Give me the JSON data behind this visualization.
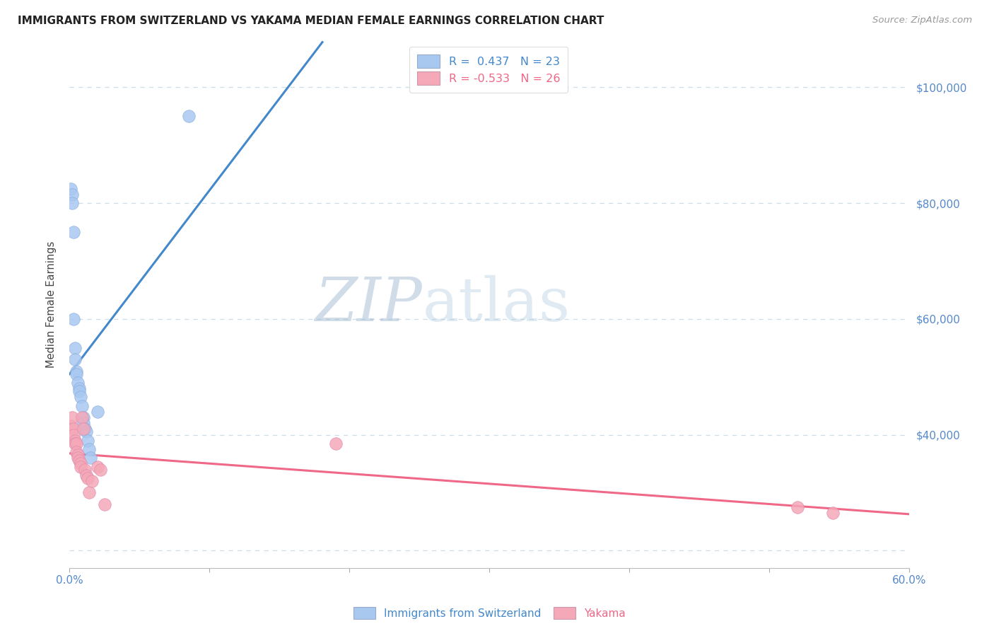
{
  "title": "IMMIGRANTS FROM SWITZERLAND VS YAKAMA MEDIAN FEMALE EARNINGS CORRELATION CHART",
  "source": "Source: ZipAtlas.com",
  "ylabel": "Median Female Earnings",
  "xlim": [
    0.0,
    0.6
  ],
  "ylim": [
    17000,
    108000
  ],
  "watermark_zip": "ZIP",
  "watermark_atlas": "atlas",
  "legend_r1": "R =  0.437   N = 23",
  "legend_r2": "R = -0.533   N = 26",
  "series1_name": "Immigrants from Switzerland",
  "series2_name": "Yakama",
  "series1_color": "#a8c8f0",
  "series2_color": "#f4a8b8",
  "series1_line_color": "#4488cc",
  "series2_line_color": "#f06888",
  "axis_label_color": "#5588cc",
  "title_color": "#222222",
  "source_color": "#999999",
  "grid_color": "#ccdde8",
  "series1_x": [
    0.001,
    0.002,
    0.002,
    0.003,
    0.003,
    0.004,
    0.004,
    0.005,
    0.005,
    0.006,
    0.007,
    0.007,
    0.008,
    0.009,
    0.01,
    0.01,
    0.011,
    0.012,
    0.013,
    0.014,
    0.015,
    0.02,
    0.085
  ],
  "series1_y": [
    82500,
    81500,
    80000,
    75000,
    60000,
    55000,
    53000,
    51000,
    50500,
    49000,
    48000,
    47500,
    46500,
    45000,
    43000,
    42000,
    41000,
    40500,
    39000,
    37500,
    36000,
    44000,
    95000
  ],
  "series2_x": [
    0.001,
    0.002,
    0.003,
    0.003,
    0.004,
    0.004,
    0.005,
    0.005,
    0.006,
    0.006,
    0.007,
    0.008,
    0.008,
    0.009,
    0.01,
    0.011,
    0.012,
    0.013,
    0.014,
    0.016,
    0.02,
    0.022,
    0.025,
    0.19,
    0.52,
    0.545
  ],
  "series2_y": [
    41500,
    43000,
    41000,
    40000,
    39000,
    38500,
    38500,
    37000,
    36500,
    36000,
    35500,
    35000,
    34500,
    43000,
    41000,
    34000,
    33000,
    32500,
    30000,
    32000,
    34500,
    34000,
    28000,
    38500,
    27500,
    26500
  ],
  "ytick_vals": [
    20000,
    40000,
    60000,
    80000,
    100000
  ],
  "ytick_labels_right": [
    "",
    "$40,000",
    "$60,000",
    "$80,000",
    "$100,000"
  ]
}
